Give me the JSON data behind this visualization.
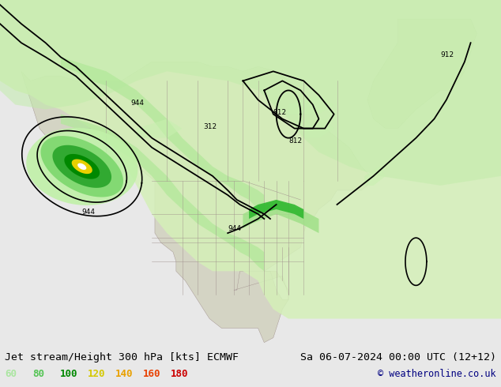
{
  "title_left": "Jet stream/Height 300 hPa [kts] ECMWF",
  "title_right": "Sa 06-07-2024 00:00 UTC (12+12)",
  "copyright": "© weatheronline.co.uk",
  "legend_values": [
    60,
    80,
    100,
    120,
    140,
    160,
    180
  ],
  "legend_colors": [
    "#aae6a0",
    "#54c454",
    "#008800",
    "#d4c800",
    "#e8a000",
    "#e84000",
    "#cc0000"
  ],
  "bg_color": "#e8e8e8",
  "ocean_color": "#e8e8e8",
  "land_color": "#d4d4c4",
  "border_color": "#a0908c",
  "jet_light": "#d0f0b0",
  "jet_med": "#90e080",
  "jet_dark": "#40b840",
  "jet_yellow": "#e0d000",
  "jet_white": "#ffffff",
  "contour_color": "#000000",
  "figsize": [
    6.34,
    4.9
  ],
  "dpi": 100,
  "map_extent": [
    -180,
    0,
    15,
    90
  ]
}
